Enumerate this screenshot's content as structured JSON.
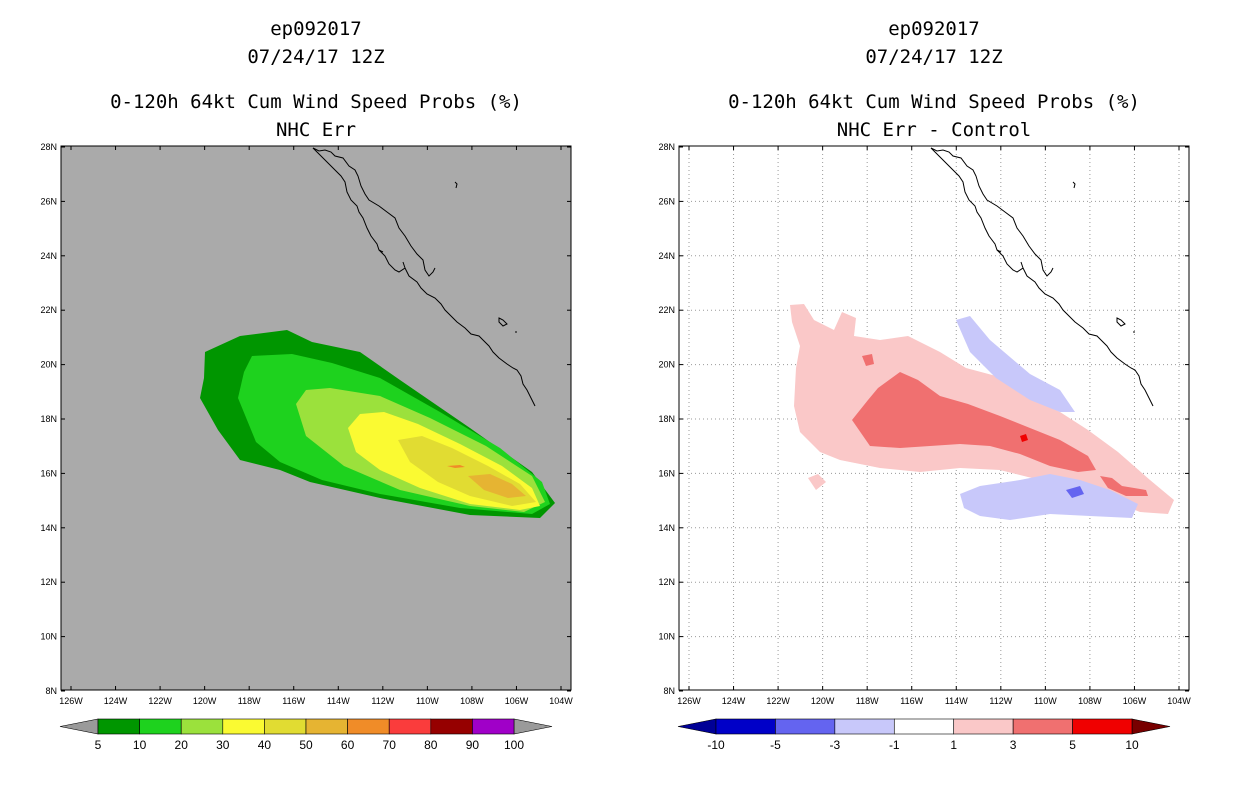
{
  "left_panel": {
    "storm_id": "ep092017",
    "datetime": "07/24/17 12Z",
    "title": "0-120h 64kt Cum Wind Speed Probs (%)",
    "subtitle": "NHC Err",
    "colorbar": {
      "labels": [
        "5",
        "10",
        "20",
        "30",
        "40",
        "50",
        "60",
        "70",
        "80",
        "90",
        "100"
      ],
      "colors": [
        "#009600",
        "#1ed21e",
        "#9be13c",
        "#fafa32",
        "#e1dc32",
        "#e6b432",
        "#f08c28",
        "#fa3c3c",
        "#960000",
        "#a000c8"
      ],
      "end_colors": [
        "#9a9a9a",
        "#9a9a9a"
      ]
    }
  },
  "right_panel": {
    "storm_id": "ep092017",
    "datetime": "07/24/17 12Z",
    "title": "0-120h 64kt Cum Wind Speed Probs (%)",
    "subtitle": "NHC Err - Control",
    "colorbar": {
      "labels": [
        "-10",
        "-5",
        "-3",
        "-1",
        "1",
        "3",
        "5",
        "10"
      ],
      "colors": [
        "#0000c8",
        "#6464f0",
        "#c8c8fa",
        "#ffffff",
        "#fac8c8",
        "#f07070",
        "#f00000"
      ],
      "end_colors": [
        "#000096",
        "#780000"
      ]
    }
  },
  "axes": {
    "lat_labels": [
      "28N",
      "26N",
      "24N",
      "22N",
      "20N",
      "18N",
      "16N",
      "14N",
      "12N",
      "10N",
      "8N"
    ],
    "lon_labels": [
      "126W",
      "124W",
      "122W",
      "120W",
      "118W",
      "116W",
      "114W",
      "112W",
      "110W",
      "108W",
      "106W",
      "104W"
    ]
  },
  "colors": {
    "land_outside": "#ffffff",
    "ocean_background_left": "#aaaaaa",
    "coastline": "#000000",
    "grid": "#9a9a9a"
  }
}
